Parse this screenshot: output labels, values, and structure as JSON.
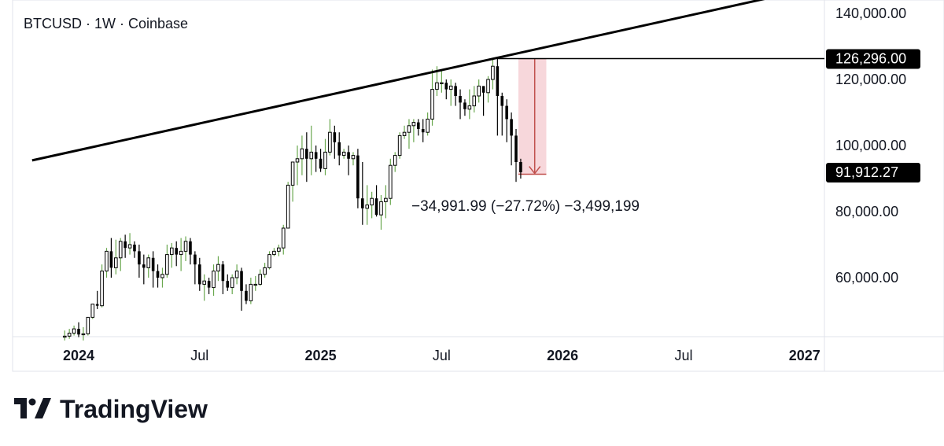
{
  "header": {
    "symbol_label": "BTCUSD · 1W · Coinbase"
  },
  "brand": {
    "name": "TradingView",
    "logo_icon": "tradingview-logo-icon"
  },
  "colors": {
    "up_wick": "#6aa84f",
    "candle_black": "#000000",
    "measure_fill": "#f7d7db",
    "measure_stroke": "#c0504d",
    "axis_line": "#e0e3eb",
    "badge_bg": "#000000"
  },
  "chart_data": {
    "type": "candlestick",
    "timeframe": "1W",
    "ylim": [
      44000,
      146000
    ],
    "y_ticks": [
      {
        "value": 140000,
        "label": "140,000.00"
      },
      {
        "value": 120000,
        "label": "120,000.00"
      },
      {
        "value": 100000,
        "label": "100,000.00"
      },
      {
        "value": 80000,
        "label": "80,000.00"
      },
      {
        "value": 60000,
        "label": "60,000.00"
      }
    ],
    "x_ticks": [
      {
        "label": "2024",
        "week": 0,
        "bold": true
      },
      {
        "label": "Jul",
        "week": 26,
        "bold": false
      },
      {
        "label": "2025",
        "week": 52,
        "bold": true
      },
      {
        "label": "Jul",
        "week": 78,
        "bold": false
      },
      {
        "label": "2026",
        "week": 104,
        "bold": true
      },
      {
        "label": "Jul",
        "week": 130,
        "bold": false
      },
      {
        "label": "2027",
        "week": 156,
        "bold": true
      }
    ],
    "price_badges": [
      {
        "value": 126296,
        "label": "126,296.00"
      },
      {
        "value": 91912.27,
        "label": "91,912.27"
      }
    ],
    "trendline": {
      "start": {
        "week": -10,
        "value": 95500
      },
      "end": {
        "week": 160,
        "value": 148300
      }
    },
    "horizontal_line": {
      "value": 126296,
      "from_week": 90
    },
    "measurement": {
      "from_week": 94.5,
      "to_week": 100.5,
      "top": 126296,
      "bottom": 91304,
      "label": "−34,991.99 (−27.72%) −3,499,199"
    },
    "candles": {
      "start_week": -3,
      "open": [
        42000,
        42300,
        43200,
        44500,
        42800,
        43000,
        48000,
        52000,
        51500,
        62000,
        68000,
        63000,
        66000,
        71000,
        69000,
        70000,
        68000,
        64000,
        63000,
        66000,
        62000,
        60000,
        61000,
        67000,
        69000,
        67000,
        68000,
        71000,
        67000,
        64000,
        58000,
        59000,
        57000,
        62000,
        64000,
        59000,
        57000,
        60000,
        62000,
        56000,
        53000,
        58000,
        58000,
        61000,
        63000,
        67000,
        68000,
        69000,
        75000,
        88000,
        95000,
        96000,
        99000,
        96000,
        98000,
        96000,
        93000,
        98000,
        104000,
        101000,
        97000,
        98000,
        96000,
        97000,
        84000,
        81000,
        82000,
        84000,
        79000,
        83000,
        84000,
        94000,
        97000,
        103000,
        104000,
        106000,
        107000,
        105000,
        104000,
        108000,
        117000,
        119000,
        119000,
        117000,
        118000,
        115000,
        113000,
        111000,
        112000,
        115000,
        118000,
        116000,
        120000,
        124000,
        115000,
        112000,
        108000,
        103000,
        95000
      ],
      "high": [
        44000,
        44500,
        45500,
        46500,
        45000,
        45500,
        52000,
        56000,
        64000,
        69000,
        72000,
        71500,
        72000,
        73000,
        73500,
        71000,
        70000,
        67000,
        67000,
        68000,
        64000,
        63000,
        70000,
        70500,
        71000,
        72000,
        72500,
        72000,
        68000,
        66000,
        61000,
        60000,
        64000,
        66500,
        65000,
        61000,
        61000,
        64000,
        63000,
        58000,
        60000,
        60500,
        62500,
        64500,
        68000,
        69000,
        70000,
        76000,
        89000,
        93000,
        100000,
        103000,
        104000,
        106000,
        100000,
        99000,
        102000,
        108000,
        106000,
        104000,
        99000,
        100000,
        98000,
        99000,
        95000,
        88000,
        86000,
        88000,
        85000,
        88000,
        96000,
        98000,
        104000,
        106000,
        108000,
        108000,
        108000,
        108000,
        110000,
        123000,
        124000,
        123000,
        120000,
        120000,
        119000,
        117000,
        114000,
        117000,
        118000,
        120000,
        118000,
        121000,
        126000,
        126300,
        116000,
        114000,
        110000,
        105000,
        96000
      ],
      "low": [
        41000,
        41500,
        42500,
        42000,
        41000,
        42500,
        47500,
        50500,
        51000,
        60000,
        60000,
        61000,
        62000,
        66000,
        67000,
        66000,
        60000,
        58000,
        60000,
        57000,
        57000,
        57000,
        60000,
        63000,
        63500,
        62000,
        65000,
        64000,
        58000,
        56000,
        53000,
        55000,
        54500,
        59000,
        55000,
        56000,
        55000,
        58000,
        50000,
        52000,
        52000,
        56000,
        57500,
        60000,
        62500,
        66500,
        66500,
        67000,
        75000,
        83000,
        88000,
        91000,
        89000,
        91000,
        92000,
        92000,
        91000,
        97000,
        96000,
        94000,
        96000,
        91000,
        94000,
        81000,
        76000,
        76000,
        78000,
        78500,
        74500,
        78000,
        82000,
        92000,
        96000,
        102000,
        99000,
        101000,
        103000,
        101000,
        103000,
        106000,
        115000,
        116000,
        114000,
        112000,
        112000,
        108000,
        109000,
        108000,
        110000,
        113000,
        109000,
        113000,
        117000,
        103000,
        103000,
        101000,
        94000,
        89000,
        90000
      ],
      "close": [
        42300,
        43200,
        44500,
        42800,
        43000,
        48000,
        52000,
        51500,
        62000,
        68000,
        63000,
        66000,
        71000,
        69000,
        70000,
        68000,
        64000,
        63000,
        66000,
        62000,
        60000,
        61000,
        67000,
        69000,
        67000,
        68000,
        71000,
        67000,
        64000,
        58000,
        59000,
        57000,
        62000,
        64000,
        59000,
        57000,
        60000,
        62000,
        56000,
        53000,
        58000,
        58000,
        61000,
        63000,
        67000,
        68000,
        69000,
        75000,
        88000,
        95000,
        96000,
        99000,
        96000,
        98000,
        96000,
        93000,
        98000,
        104000,
        101000,
        97000,
        98000,
        96000,
        97000,
        84000,
        81000,
        82000,
        84000,
        79000,
        83000,
        84000,
        94000,
        97000,
        103000,
        104000,
        106000,
        107000,
        105000,
        104000,
        108000,
        117000,
        119000,
        119000,
        117000,
        118000,
        115000,
        113000,
        111000,
        112000,
        115000,
        118000,
        116000,
        120000,
        124000,
        115000,
        112000,
        108000,
        103000,
        95000,
        91912
      ]
    }
  }
}
